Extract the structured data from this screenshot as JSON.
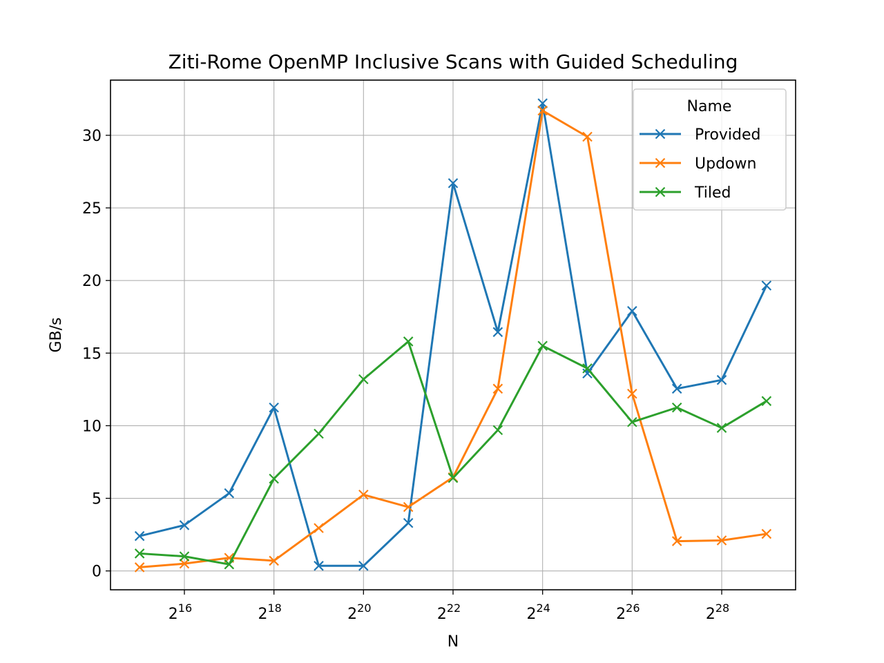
{
  "chart_data": {
    "type": "line",
    "title": "Ziti-Rome OpenMP Inclusive Scans with Guided Scheduling",
    "xlabel": "N",
    "ylabel": "GB/s",
    "x_scale": "log2",
    "x_exponents": [
      15,
      16,
      17,
      18,
      19,
      20,
      21,
      22,
      23,
      24,
      25,
      26,
      27,
      28,
      29
    ],
    "x_tick_base": "2",
    "x_tick_exponents": [
      "16",
      "18",
      "20",
      "22",
      "24",
      "26",
      "28"
    ],
    "y_ticks": [
      "0",
      "5",
      "10",
      "15",
      "20",
      "25",
      "30"
    ],
    "ylim": [
      -1.3,
      33.8
    ],
    "grid": true,
    "legend": {
      "title": "Name",
      "position": "top-right"
    },
    "series": [
      {
        "name": "Provided",
        "color": "#1f77b4",
        "values": [
          2.4,
          3.15,
          5.35,
          11.25,
          0.35,
          0.35,
          3.3,
          26.7,
          16.45,
          32.2,
          13.6,
          17.9,
          12.55,
          13.15,
          19.65
        ]
      },
      {
        "name": "Updown",
        "color": "#ff7f0e",
        "values": [
          0.25,
          0.5,
          0.9,
          0.7,
          2.95,
          5.25,
          4.4,
          6.45,
          12.55,
          31.7,
          29.9,
          12.2,
          2.05,
          2.1,
          2.55
        ]
      },
      {
        "name": "Tiled",
        "color": "#2ca02c",
        "values": [
          1.2,
          1.0,
          0.45,
          6.35,
          9.45,
          13.2,
          15.8,
          6.4,
          9.7,
          15.5,
          13.95,
          10.25,
          11.25,
          9.85,
          11.7
        ]
      }
    ]
  }
}
